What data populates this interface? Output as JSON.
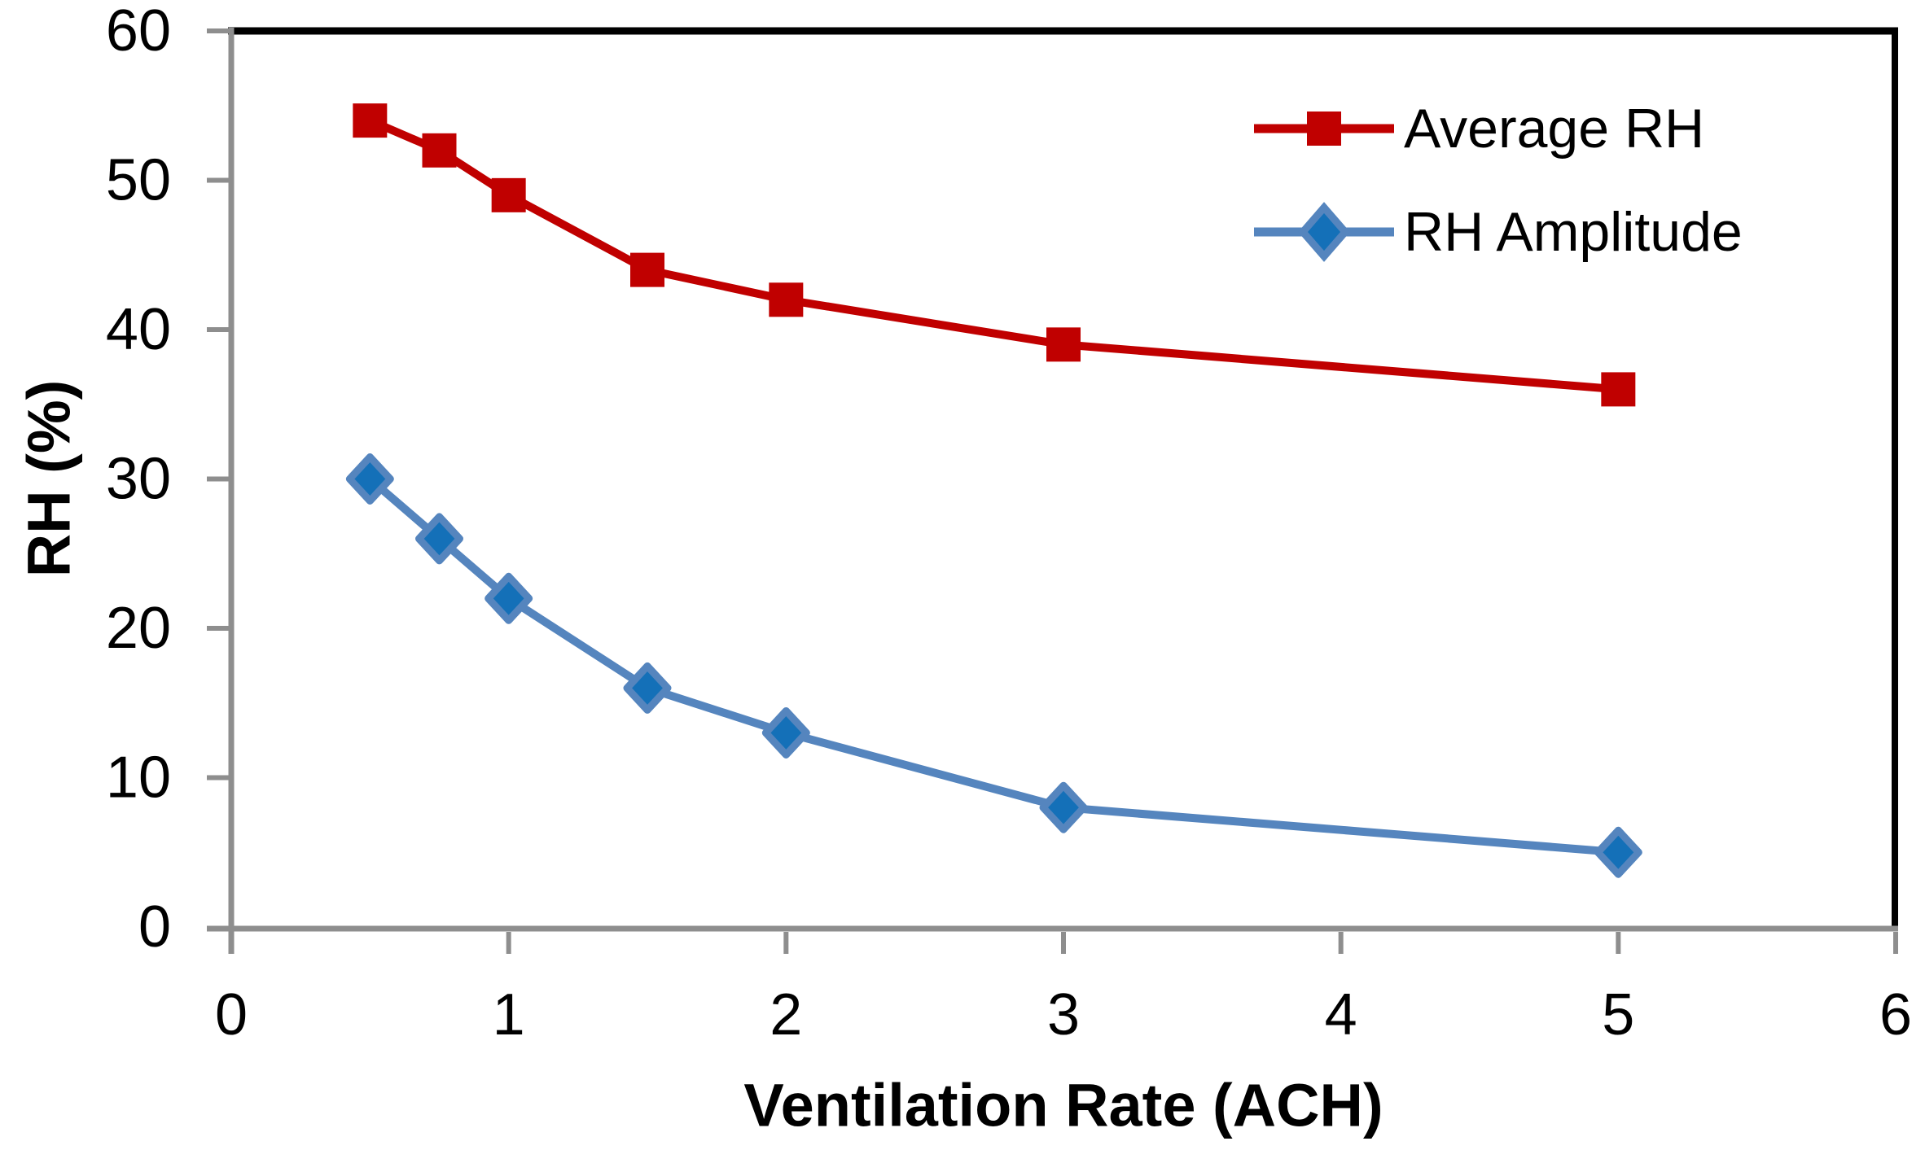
{
  "style": {
    "background": "#FFFFFF",
    "axis_color": "#8E8E8E",
    "frame_color": "#000000",
    "text_color": "#000000"
  },
  "chart_data": {
    "type": "line",
    "title": "",
    "xlabel": "Ventilation Rate (ACH)",
    "ylabel": "RH (%)",
    "x_scale": "linear",
    "xlim": [
      0,
      6
    ],
    "ylim": [
      0,
      60
    ],
    "x_ticks": [
      0,
      1,
      2,
      3,
      4,
      5,
      6
    ],
    "y_ticks": [
      0,
      10,
      20,
      30,
      40,
      50,
      60
    ],
    "grid": false,
    "legend_position": "top-right-inside",
    "series": [
      {
        "name": "Average RH",
        "color": "#C00000",
        "marker": "square",
        "marker_fill": "#C00000",
        "x": [
          0.5,
          0.75,
          1,
          1.5,
          2,
          3,
          5
        ],
        "values": [
          54,
          52,
          49,
          44,
          42,
          39,
          36
        ]
      },
      {
        "name": "RH Amplitude",
        "color": "#5585BE",
        "marker": "diamond",
        "marker_fill": "#1470B8",
        "x": [
          0.5,
          0.75,
          1,
          1.5,
          2,
          3,
          5
        ],
        "values": [
          30,
          26,
          22,
          16,
          13,
          8,
          5
        ]
      }
    ]
  }
}
